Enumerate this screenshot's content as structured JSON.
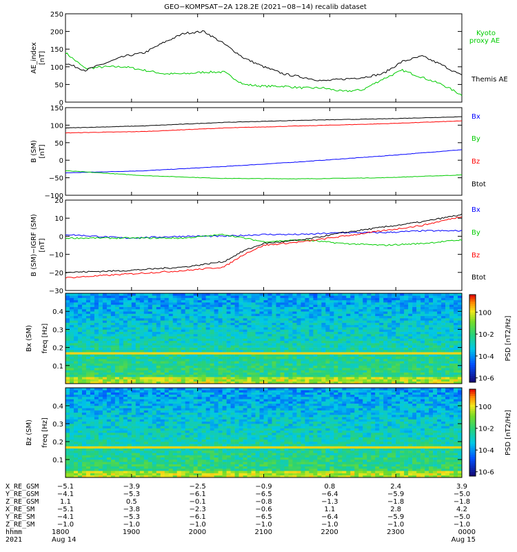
{
  "title": "GEO−KOMPSAT−2A 128.2E (2021−08−14) recalib dataset",
  "colors": {
    "bx": "#0000ff",
    "by": "#00cc00",
    "bz": "#ff0000",
    "btot": "#000000",
    "kyoto": "#00cc00",
    "themis": "#000000"
  },
  "chart_data": [
    {
      "type": "line",
      "panel": "ae",
      "ylabel": "AE_index",
      "yunit": "[nT]",
      "ylim": [
        0,
        250
      ],
      "yticks": [
        0,
        50,
        100,
        150,
        200,
        250
      ],
      "x_range_utc_hhmm": [
        "1800",
        "0000"
      ],
      "series": [
        {
          "name": "Kyoto proxy AE",
          "color": "#00cc00",
          "x": [
            0.0,
            0.05,
            0.1,
            0.15,
            0.2,
            0.25,
            0.3,
            0.35,
            0.4,
            0.45,
            0.5,
            0.55,
            0.6,
            0.65,
            0.7,
            0.75,
            0.8,
            0.85,
            0.9,
            0.95,
            1.0
          ],
          "values": [
            140,
            95,
            100,
            100,
            90,
            80,
            80,
            85,
            85,
            50,
            45,
            45,
            40,
            40,
            30,
            35,
            65,
            90,
            70,
            50,
            20
          ]
        },
        {
          "name": "Themis AE",
          "color": "#000000",
          "x": [
            0.0,
            0.05,
            0.1,
            0.15,
            0.2,
            0.25,
            0.3,
            0.35,
            0.4,
            0.45,
            0.5,
            0.55,
            0.6,
            0.65,
            0.7,
            0.75,
            0.8,
            0.85,
            0.9,
            0.95,
            1.0
          ],
          "values": [
            110,
            90,
            110,
            130,
            140,
            170,
            195,
            200,
            165,
            125,
            100,
            80,
            70,
            60,
            65,
            70,
            80,
            115,
            130,
            105,
            75
          ]
        }
      ]
    },
    {
      "type": "line",
      "panel": "b_sm",
      "ylabel": "B (SM)",
      "yunit": "[nT]",
      "ylim": [
        -100,
        150
      ],
      "yticks": [
        -100,
        -50,
        0,
        50,
        100,
        150
      ],
      "series": [
        {
          "name": "Bx",
          "color": "#0000ff",
          "x": [
            0,
            0.2,
            0.4,
            0.6,
            0.8,
            1.0
          ],
          "values": [
            -36,
            -30,
            -18,
            -4,
            12,
            30
          ]
        },
        {
          "name": "By",
          "color": "#00cc00",
          "x": [
            0,
            0.2,
            0.4,
            0.6,
            0.8,
            1.0
          ],
          "values": [
            -30,
            -44,
            -52,
            -53,
            -50,
            -42
          ]
        },
        {
          "name": "Bz",
          "color": "#ff0000",
          "x": [
            0,
            0.2,
            0.4,
            0.6,
            0.8,
            1.0
          ],
          "values": [
            78,
            82,
            92,
            98,
            104,
            112
          ]
        },
        {
          "name": "Btot",
          "color": "#000000",
          "x": [
            0,
            0.2,
            0.4,
            0.6,
            0.8,
            1.0
          ],
          "values": [
            92,
            98,
            108,
            114,
            118,
            124
          ]
        }
      ]
    },
    {
      "type": "line",
      "panel": "b_minus_igrf",
      "ylabel": "B (SM)−IGRF (SM)",
      "yunit": "[nT]",
      "ylim": [
        -30,
        20
      ],
      "yticks": [
        -30,
        -20,
        -10,
        0,
        10,
        20
      ],
      "series": [
        {
          "name": "Bx",
          "color": "#0000ff",
          "x": [
            0,
            0.15,
            0.3,
            0.4,
            0.5,
            0.6,
            0.7,
            0.8,
            0.9,
            1.0
          ],
          "values": [
            1,
            -1,
            0,
            0,
            1,
            1,
            2,
            2,
            3,
            3
          ]
        },
        {
          "name": "By",
          "color": "#00cc00",
          "x": [
            0,
            0.15,
            0.3,
            0.4,
            0.5,
            0.6,
            0.7,
            0.8,
            0.9,
            1.0
          ],
          "values": [
            -1,
            -1,
            -1,
            1,
            -3,
            -2,
            -4,
            -5,
            -4,
            -2
          ]
        },
        {
          "name": "Bz",
          "color": "#ff0000",
          "x": [
            0,
            0.15,
            0.3,
            0.4,
            0.45,
            0.5,
            0.6,
            0.7,
            0.8,
            0.9,
            1.0
          ],
          "values": [
            -23,
            -21,
            -19,
            -17,
            -10,
            -5,
            -3,
            0,
            3,
            6,
            11
          ]
        },
        {
          "name": "Btot",
          "color": "#000000",
          "x": [
            0,
            0.15,
            0.3,
            0.4,
            0.45,
            0.5,
            0.6,
            0.7,
            0.8,
            0.9,
            1.0
          ],
          "values": [
            -20,
            -19,
            -17,
            -14,
            -8,
            -4,
            -2,
            2,
            5,
            8,
            12
          ]
        }
      ]
    },
    {
      "type": "heatmap",
      "panel": "bx_spectrogram",
      "ylabel": "Bx (SM)",
      "yunit_label": "freq [Hz]",
      "ylim": [
        0,
        0.5
      ],
      "yticks": [
        0.1,
        0.2,
        0.3,
        0.4
      ],
      "colorbar_label": "PSD [nT^2/Hz]",
      "colorbar_ticks": [
        "10^0",
        "10^-2",
        "10^-4",
        "10^-6"
      ],
      "line_hz": 0.17
    },
    {
      "type": "heatmap",
      "panel": "bz_spectrogram",
      "ylabel": "Bz (SM)",
      "yunit_label": "freq [Hz]",
      "ylim": [
        0,
        0.5
      ],
      "yticks": [
        0.1,
        0.2,
        0.3,
        0.4
      ],
      "colorbar_label": "PSD [nT^2/Hz]",
      "colorbar_ticks": [
        "10^0",
        "10^-2",
        "10^-4",
        "10^-6"
      ],
      "line_hz": 0.17
    }
  ],
  "legends": {
    "ae": [
      "Kyoto",
      "proxy AE",
      "Themis AE"
    ],
    "b": [
      "Bx",
      "By",
      "Bz",
      "Btot"
    ]
  },
  "ephemeris": {
    "labels": [
      "X_RE_GSM",
      "Y_RE_GSM",
      "Z_RE_GSM",
      "X_RE_SM",
      "Y_RE_SM",
      "Z_RE_SM",
      "hhmm",
      "2021"
    ],
    "columns": [
      [
        "−5.1",
        "−4.1",
        "1.1",
        "−5.1",
        "−4.1",
        "−1.0",
        "1800",
        "Aug 14"
      ],
      [
        "−3.9",
        "−5.3",
        "0.5",
        "−3.8",
        "−5.3",
        "−1.0",
        "1900",
        ""
      ],
      [
        "−2.5",
        "−6.1",
        "−0.1",
        "−2.3",
        "−6.1",
        "−1.0",
        "2000",
        ""
      ],
      [
        "−0.9",
        "−6.5",
        "−0.8",
        "−0.6",
        "−6.5",
        "−1.0",
        "2100",
        ""
      ],
      [
        "0.8",
        "−6.4",
        "−1.3",
        "1.1",
        "−6.4",
        "−1.0",
        "2200",
        ""
      ],
      [
        "2.4",
        "−5.9",
        "−1.8",
        "2.8",
        "−5.9",
        "−1.0",
        "2300",
        ""
      ],
      [
        "3.9",
        "−5.0",
        "−1.8",
        "4.2",
        "−5.0",
        "−1.0",
        "0000",
        "Aug 15"
      ]
    ]
  }
}
